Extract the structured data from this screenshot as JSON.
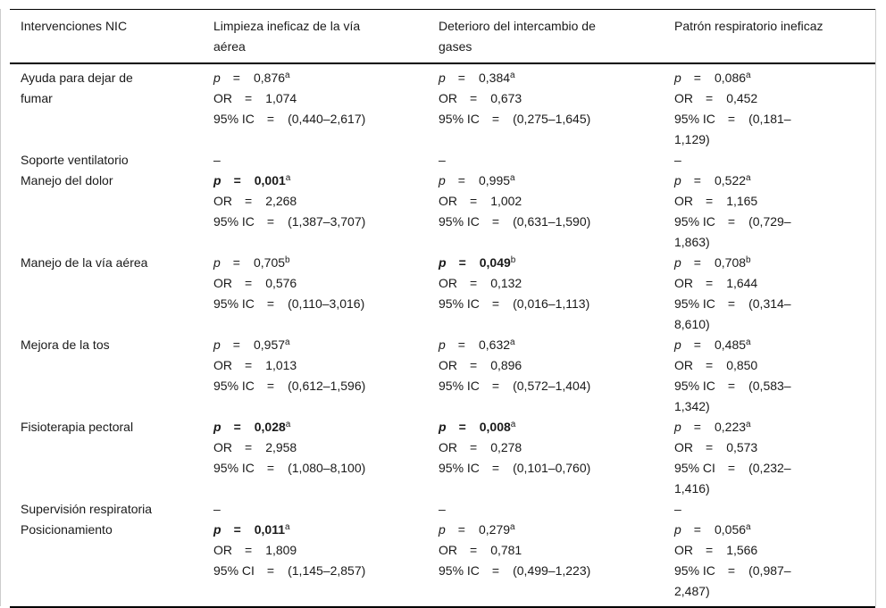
{
  "page": {
    "background_color": "#ffffff",
    "rule_color": "#000000",
    "text_color": "#1a1a1a",
    "edge_line_color": "#cccccc"
  },
  "table": {
    "eq_sign": "=",
    "header": {
      "col1": "Intervenciones NIC",
      "col2": "Limpieza ineficaz de la vía\naérea",
      "col3": "Deterioro del intercambio de\ngases",
      "col4": "Patrón respiratorio ineficaz"
    },
    "rows": [
      {
        "intervention": "Ayuda para dejar de\nfumar",
        "cells": [
          {
            "stats": [
              {
                "label": "p",
                "italic": true,
                "bold": false,
                "value": "0,876",
                "sup": "a"
              },
              {
                "label": "OR",
                "value": "1,074"
              },
              {
                "label": "95% IC",
                "value": "(0,440–2,617)"
              }
            ]
          },
          {
            "stats": [
              {
                "label": "p",
                "italic": true,
                "bold": false,
                "value": "0,384",
                "sup": "a"
              },
              {
                "label": "OR",
                "value": "0,673"
              },
              {
                "label": "95% IC",
                "value": "(0,275–1,645)"
              }
            ]
          },
          {
            "stats": [
              {
                "label": "p",
                "italic": true,
                "bold": false,
                "value": "0,086",
                "sup": "a"
              },
              {
                "label": "OR",
                "value": "0,452"
              },
              {
                "label": "95% IC",
                "value": "(0,181–\n1,129)"
              }
            ]
          }
        ]
      },
      {
        "intervention": "Soporte ventilatorio",
        "cells": [
          {
            "dash": "–"
          },
          {
            "dash": "–"
          },
          {
            "dash": "–"
          }
        ]
      },
      {
        "intervention": "Manejo del dolor",
        "cells": [
          {
            "stats": [
              {
                "label": "p",
                "italic": true,
                "bold": true,
                "value": "0,001",
                "sup": "a"
              },
              {
                "label": "OR",
                "value": "2,268"
              },
              {
                "label": "95% IC",
                "value": "(1,387–3,707)"
              }
            ]
          },
          {
            "stats": [
              {
                "label": "p",
                "italic": true,
                "bold": false,
                "value": "0,995",
                "sup": "a"
              },
              {
                "label": "OR",
                "value": "1,002"
              },
              {
                "label": "95% IC",
                "value": "(0,631–1,590)"
              }
            ]
          },
          {
            "stats": [
              {
                "label": "p",
                "italic": true,
                "bold": false,
                "value": "0,522",
                "sup": "a"
              },
              {
                "label": "OR",
                "value": "1,165"
              },
              {
                "label": "95% IC",
                "value": "(0,729–\n1,863)"
              }
            ]
          }
        ]
      },
      {
        "intervention": "Manejo de la vía aérea",
        "cells": [
          {
            "stats": [
              {
                "label": "p",
                "italic": true,
                "bold": false,
                "value": "0,705",
                "sup": "b"
              },
              {
                "label": "OR",
                "value": "0,576"
              },
              {
                "label": "95% IC",
                "value": "(0,110–3,016)"
              }
            ]
          },
          {
            "stats": [
              {
                "label": "p",
                "italic": true,
                "bold": true,
                "value": "0,049",
                "sup": "b"
              },
              {
                "label": "OR",
                "value": "0,132"
              },
              {
                "label": "95% IC",
                "value": "(0,016–1,113)"
              }
            ]
          },
          {
            "stats": [
              {
                "label": "p",
                "italic": true,
                "bold": false,
                "value": "0,708",
                "sup": "b"
              },
              {
                "label": "OR",
                "value": "1,644"
              },
              {
                "label": "95% IC",
                "value": "(0,314–\n8,610)"
              }
            ]
          }
        ]
      },
      {
        "intervention": "Mejora de la tos",
        "cells": [
          {
            "stats": [
              {
                "label": "p",
                "italic": true,
                "bold": false,
                "value": "0,957",
                "sup": "a"
              },
              {
                "label": "OR",
                "value": "1,013"
              },
              {
                "label": "95% IC",
                "value": "(0,612–1,596)"
              }
            ]
          },
          {
            "stats": [
              {
                "label": "p",
                "italic": true,
                "bold": false,
                "value": "0,632",
                "sup": "a"
              },
              {
                "label": "OR",
                "value": "0,896"
              },
              {
                "label": "95% IC",
                "value": "(0,572–1,404)"
              }
            ]
          },
          {
            "stats": [
              {
                "label": "p",
                "italic": true,
                "bold": false,
                "value": "0,485",
                "sup": "a"
              },
              {
                "label": "OR",
                "value": "0,850"
              },
              {
                "label": "95% IC",
                "value": "(0,583–\n1,342)"
              }
            ]
          }
        ]
      },
      {
        "intervention": "Fisioterapia pectoral",
        "cells": [
          {
            "stats": [
              {
                "label": "p",
                "italic": true,
                "bold": true,
                "value": "0,028",
                "sup": "a"
              },
              {
                "label": "OR",
                "value": "2,958"
              },
              {
                "label": "95% IC",
                "value": "(1,080–8,100)"
              }
            ]
          },
          {
            "stats": [
              {
                "label": "p",
                "italic": true,
                "bold": true,
                "value": "0,008",
                "sup": "a"
              },
              {
                "label": "OR",
                "value": "0,278"
              },
              {
                "label": "95% IC",
                "value": "(0,101–0,760)"
              }
            ]
          },
          {
            "stats": [
              {
                "label": "p",
                "italic": true,
                "bold": false,
                "value": "0,223",
                "sup": "a"
              },
              {
                "label": "OR",
                "value": "0,573"
              },
              {
                "label": "95% CI",
                "value": "(0,232–\n1,416)"
              }
            ]
          }
        ]
      },
      {
        "intervention": "Supervisión respiratoria",
        "cells": [
          {
            "dash": "–"
          },
          {
            "dash": "–"
          },
          {
            "dash": "–"
          }
        ]
      },
      {
        "intervention": "Posicionamiento",
        "cells": [
          {
            "stats": [
              {
                "label": "p",
                "italic": true,
                "bold": true,
                "value": "0,011",
                "sup": "a"
              },
              {
                "label": "OR",
                "value": "1,809"
              },
              {
                "label": "95% CI",
                "value": "(1,145–2,857)"
              }
            ]
          },
          {
            "stats": [
              {
                "label": "p",
                "italic": true,
                "bold": false,
                "value": "0,279",
                "sup": "a"
              },
              {
                "label": "OR",
                "value": "0,781"
              },
              {
                "label": "95% IC",
                "value": "(0,499–1,223)"
              }
            ]
          },
          {
            "stats": [
              {
                "label": "p",
                "italic": true,
                "bold": false,
                "value": "0,056",
                "sup": "a"
              },
              {
                "label": "OR",
                "value": "1,566"
              },
              {
                "label": "95% IC",
                "value": "(0,987–\n2,487)"
              }
            ]
          }
        ]
      }
    ]
  }
}
